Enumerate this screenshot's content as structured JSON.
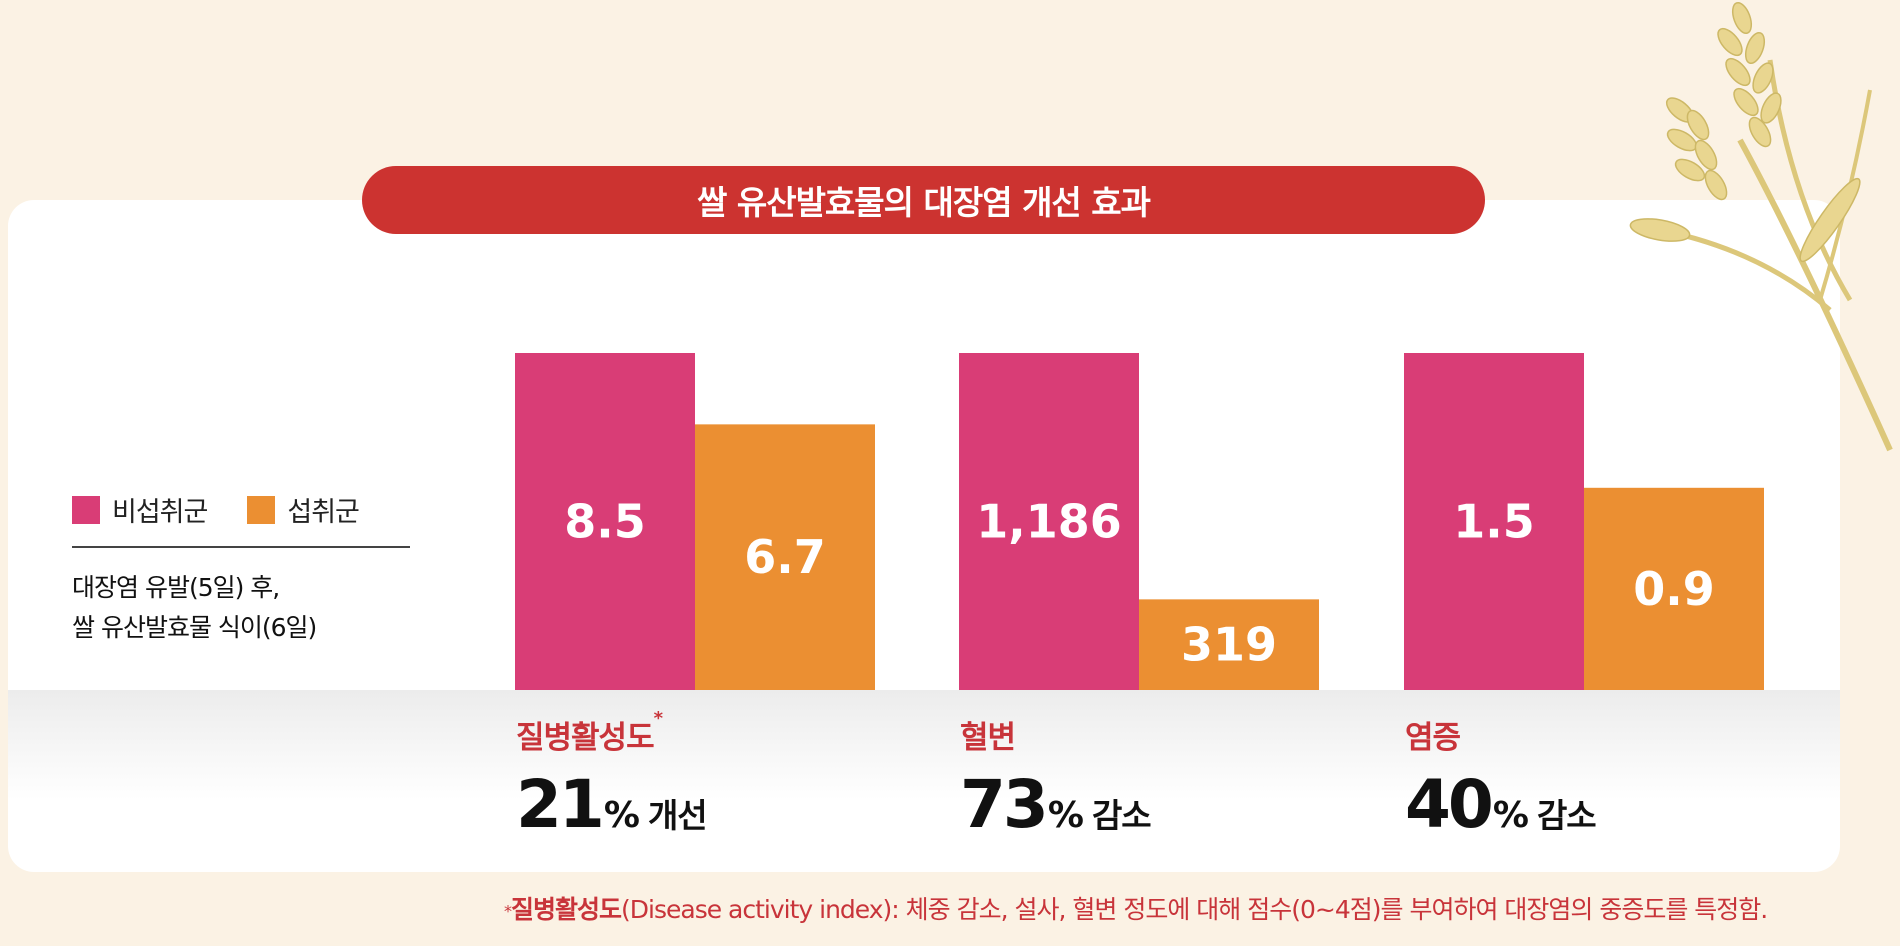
{
  "title": "쌀 유산발효물의 대장염 개선 효과",
  "legend": [
    {
      "label": "비섭취군",
      "color": "#d93d76"
    },
    {
      "label": "섭취군",
      "color": "#eb8f32"
    }
  ],
  "note_line1": "대장염 유발(5일) 후,",
  "note_line2": "쌀 유산발효물 식이(6일)",
  "chart_data": {
    "type": "bar",
    "series": [
      {
        "name": "비섭취군",
        "color": "#d93d76"
      },
      {
        "name": "섭취군",
        "color": "#eb8f32"
      }
    ],
    "groups": [
      {
        "label": "질병활성도",
        "values": [
          8.5,
          6.7
        ],
        "value_labels": [
          "8.5",
          "6.7"
        ],
        "ymax": 8.5
      },
      {
        "label": "혈변",
        "values": [
          1186,
          319
        ],
        "value_labels": [
          "1,186",
          "319"
        ],
        "ymax": 1186
      },
      {
        "label": "염증",
        "values": [
          1.5,
          0.9
        ],
        "value_labels": [
          "1.5",
          "0.9"
        ],
        "ymax": 1.5
      }
    ]
  },
  "metrics": [
    {
      "label": "질병활성도",
      "star": "*",
      "value": "21",
      "pct": "%",
      "word": "개선"
    },
    {
      "label": "혈변",
      "star": "",
      "value": "73",
      "pct": "%",
      "word": "감소"
    },
    {
      "label": "염증",
      "star": "",
      "value": "40",
      "pct": "%",
      "word": "감소"
    }
  ],
  "footnote": {
    "star": "*",
    "term": "질병활성도",
    "text": "(Disease activity index): 체중 감소, 설사, 혈변 정도에 대해 점수(0~4점)를 부여하여 대장염의 중증도를 특정함."
  }
}
